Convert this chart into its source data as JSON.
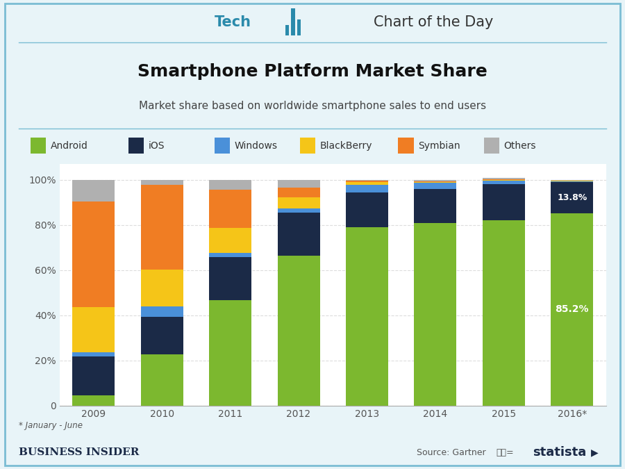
{
  "years": [
    "2009",
    "2010",
    "2011",
    "2012",
    "2013",
    "2014",
    "2015",
    "2016*"
  ],
  "series": {
    "Android": [
      4.7,
      22.7,
      46.9,
      66.4,
      79.0,
      81.0,
      82.2,
      85.2
    ],
    "iOS": [
      17.1,
      16.7,
      18.9,
      19.1,
      15.5,
      15.0,
      15.9,
      13.8
    ],
    "Windows": [
      2.0,
      4.7,
      1.9,
      2.0,
      3.2,
      2.7,
      1.7,
      0.5
    ],
    "BlackBerry": [
      19.9,
      16.1,
      11.0,
      4.7,
      1.5,
      0.5,
      0.3,
      0.2
    ],
    "Symbian": [
      46.9,
      37.6,
      16.9,
      4.4,
      0.6,
      0.3,
      0.1,
      0.1
    ],
    "Others": [
      9.4,
      2.2,
      4.4,
      3.4,
      0.2,
      0.5,
      0.8,
      0.2
    ]
  },
  "colors": {
    "Android": "#7cb82f",
    "iOS": "#1b2a47",
    "Windows": "#4a90d9",
    "BlackBerry": "#f5c518",
    "Symbian": "#f07d23",
    "Others": "#b0b0b0"
  },
  "series_order": [
    "Android",
    "iOS",
    "Windows",
    "BlackBerry",
    "Symbian",
    "Others"
  ],
  "title": "Smartphone Platform Market Share",
  "subtitle": "Market share based on worldwide smartphone sales to end users",
  "header_tech": "Tech",
  "header_chart": "Chart of the Day",
  "footnote": "* January - June",
  "footer_left": "Business Insider",
  "footer_source": "Source: Gartner",
  "footer_statista": "statista",
  "bg_color": "#e8f4f8",
  "title_bg_color": "#dceef7",
  "header_bg_color": "#c5e3f0",
  "plot_bg_color": "#ffffff",
  "border_color": "#7bbdd4",
  "line_color": "#7bbdd4",
  "icon_color": "#2a8aab",
  "tech_color": "#2a8aab",
  "chart_of_day_color": "#333333",
  "title_color": "#111111",
  "subtitle_color": "#444444",
  "ytick_color": "#555555",
  "xtick_color": "#555555",
  "grid_color": "#dddddd",
  "annot_android": "85.2%",
  "annot_ios": "13.8%"
}
